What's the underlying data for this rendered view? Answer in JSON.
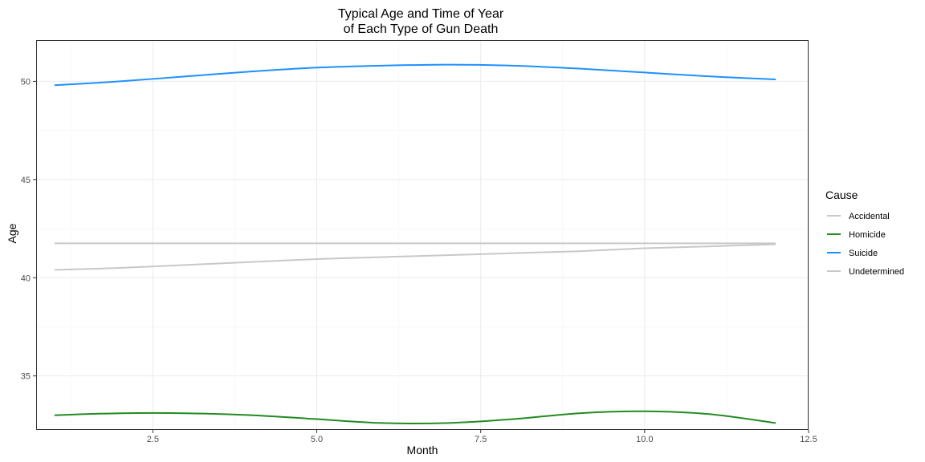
{
  "chart_data": {
    "type": "line",
    "title_lines": [
      "Typical Age and Time of Year",
      "of Each Type of Gun Death"
    ],
    "xlabel": "Month",
    "ylabel": "Age",
    "xlim": [
      0.72,
      12.5
    ],
    "ylim": [
      32.25,
      52.1
    ],
    "x_ticks": [
      2.5,
      5.0,
      7.5,
      10.0,
      12.5
    ],
    "x_tick_labels": [
      "2.5",
      "5.0",
      "7.5",
      "10.0",
      "12.5"
    ],
    "x_minor_ticks": [
      1.25,
      3.75,
      6.25,
      8.75,
      11.25
    ],
    "y_ticks": [
      35,
      40,
      45,
      50
    ],
    "y_tick_labels": [
      "35",
      "40",
      "45",
      "50"
    ],
    "y_minor_ticks": [
      32.5,
      37.5,
      42.5,
      47.5
    ],
    "grid": true,
    "legend": {
      "title": "Cause",
      "position": "right"
    },
    "series": [
      {
        "name": "Accidental",
        "color": "#c8c8c8",
        "x": [
          1,
          2,
          3,
          4,
          5,
          6,
          7,
          8,
          9,
          10,
          11,
          12
        ],
        "y": [
          40.4,
          40.5,
          40.65,
          40.8,
          40.95,
          41.05,
          41.15,
          41.25,
          41.35,
          41.5,
          41.6,
          41.7
        ]
      },
      {
        "name": "Homicide",
        "color": "#228b22",
        "x": [
          1,
          2,
          3,
          4,
          5,
          6,
          7,
          8,
          9,
          10,
          11,
          12
        ],
        "y": [
          33.0,
          33.1,
          33.1,
          33.0,
          32.8,
          32.6,
          32.6,
          32.8,
          33.1,
          33.2,
          33.05,
          32.6
        ]
      },
      {
        "name": "Suicide",
        "color": "#1e90ff",
        "x": [
          1,
          2,
          3,
          4,
          5,
          6,
          7,
          8,
          9,
          10,
          11,
          12
        ],
        "y": [
          49.8,
          50.0,
          50.25,
          50.5,
          50.7,
          50.8,
          50.85,
          50.8,
          50.65,
          50.45,
          50.25,
          50.1
        ]
      },
      {
        "name": "Undetermined",
        "color": "#c8c8c8",
        "x": [
          1,
          2,
          3,
          4,
          5,
          6,
          7,
          8,
          9,
          10,
          11,
          12
        ],
        "y": [
          41.75,
          41.75,
          41.75,
          41.75,
          41.75,
          41.75,
          41.75,
          41.75,
          41.75,
          41.75,
          41.75,
          41.75
        ]
      }
    ]
  }
}
